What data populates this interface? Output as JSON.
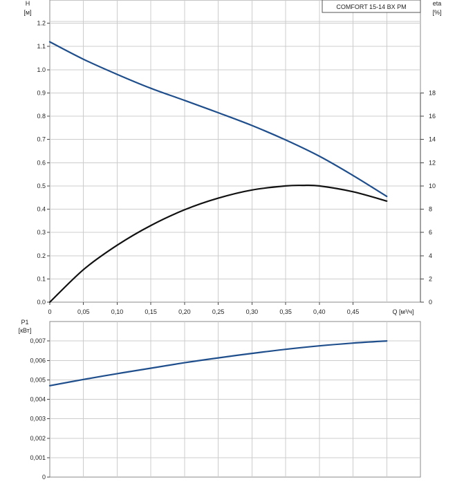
{
  "chart_data": [
    {
      "type": "line",
      "legend_box": "COMFORT 15-14 BX PM",
      "y_left": {
        "label_line1": "H",
        "label_line2": "[м]",
        "range": [
          0,
          1.3
        ],
        "ticks": [
          "0.0",
          "0.1",
          "0.2",
          "0.3",
          "0.4",
          "0.5",
          "0.6",
          "0.7",
          "0.8",
          "0.9",
          "1.0",
          "1.1",
          "1.2"
        ]
      },
      "y_right": {
        "label_line1": "eta",
        "label_line2": "[%]",
        "range": [
          0,
          26
        ],
        "ticks": [
          "0",
          "2",
          "4",
          "6",
          "8",
          "10",
          "12",
          "14",
          "16",
          "18"
        ]
      },
      "x": {
        "label": "Q [м³/ч]",
        "range": [
          0,
          0.55
        ],
        "ticks": [
          "0",
          "0,05",
          "0,10",
          "0,15",
          "0,20",
          "0,25",
          "0,30",
          "0,35",
          "0,40",
          "0,45"
        ]
      },
      "grid": true,
      "series": [
        {
          "axis": "left",
          "color": "#1f4e8c",
          "x": [
            0,
            0.05,
            0.1,
            0.15,
            0.2,
            0.25,
            0.3,
            0.35,
            0.4,
            0.45,
            0.5
          ],
          "y": [
            1.12,
            1.045,
            0.98,
            0.92,
            0.868,
            0.815,
            0.76,
            0.698,
            0.628,
            0.545,
            0.455
          ]
        },
        {
          "axis": "right",
          "color": "#111111",
          "x": [
            0,
            0.05,
            0.1,
            0.15,
            0.2,
            0.25,
            0.3,
            0.35,
            0.375,
            0.4,
            0.45,
            0.5
          ],
          "y": [
            0,
            2.8,
            4.9,
            6.6,
            7.95,
            8.95,
            9.65,
            10.0,
            10.05,
            10.0,
            9.5,
            8.7
          ]
        }
      ]
    },
    {
      "type": "line",
      "y_left": {
        "label_line1": "P1",
        "label_line2": "[кВт]",
        "range": [
          0,
          0.008
        ],
        "ticks": [
          "0",
          "0,001",
          "0,002",
          "0,003",
          "0,004",
          "0,005",
          "0,006",
          "0,007"
        ]
      },
      "x": {
        "range": [
          0,
          0.55
        ]
      },
      "grid": true,
      "series": [
        {
          "axis": "left",
          "color": "#1f4e8c",
          "x": [
            0,
            0.05,
            0.1,
            0.15,
            0.2,
            0.25,
            0.3,
            0.35,
            0.4,
            0.45,
            0.5
          ],
          "y": [
            0.0047,
            0.00502,
            0.00532,
            0.0056,
            0.00588,
            0.00613,
            0.00636,
            0.00657,
            0.00675,
            0.00689,
            0.007
          ]
        }
      ]
    }
  ]
}
